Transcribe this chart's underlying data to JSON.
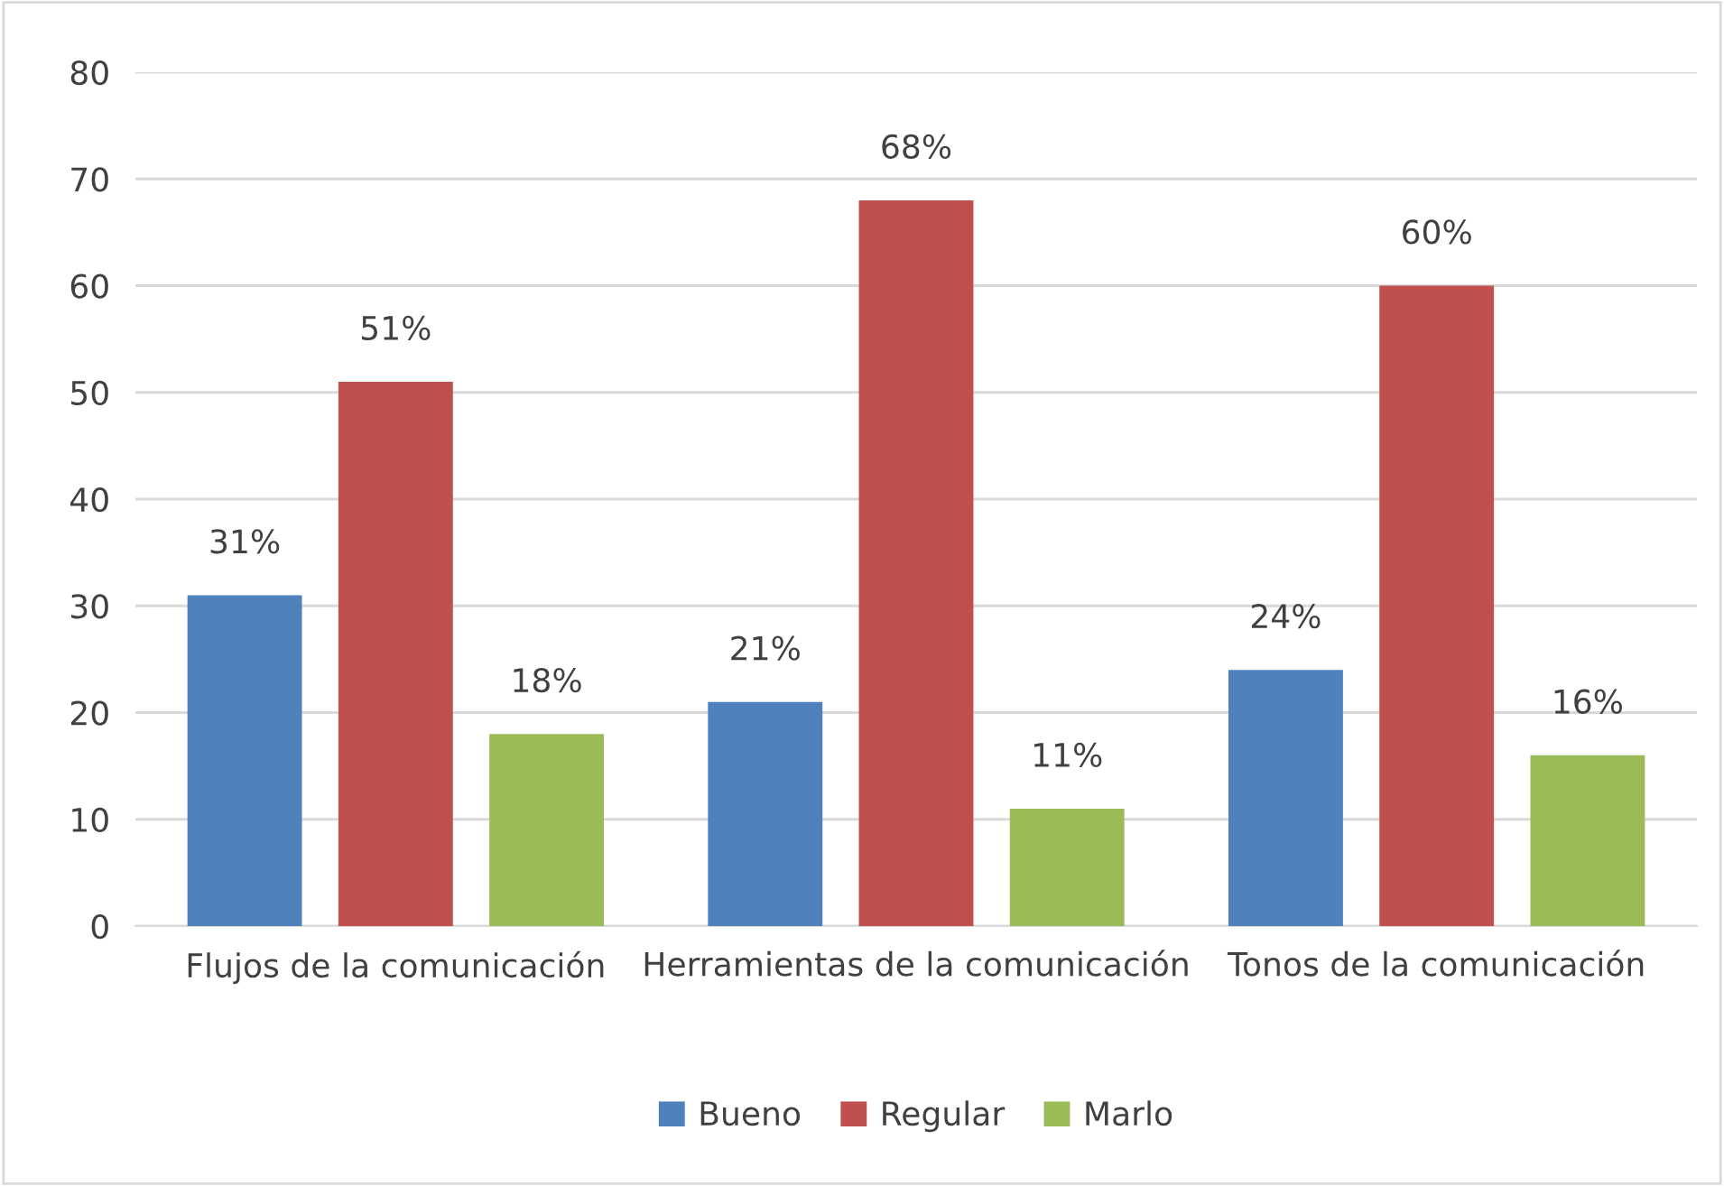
{
  "chart_data": {
    "type": "bar",
    "categories": [
      "Flujos de la comunicación",
      "Herramientas de la comunicación",
      "Tonos de la comunicación"
    ],
    "series": [
      {
        "name": "Bueno",
        "color": "#4f81bd",
        "values": [
          31,
          21,
          24
        ],
        "value_labels": [
          "31%",
          "21%",
          "24%"
        ]
      },
      {
        "name": "Regular",
        "color": "#c0504d",
        "values": [
          51,
          68,
          60
        ],
        "value_labels": [
          "51%",
          "68%",
          "60%"
        ]
      },
      {
        "name": "Marlo",
        "color": "#9bbb59",
        "values": [
          18,
          11,
          16
        ],
        "value_labels": [
          "18%",
          "11%",
          "16%"
        ]
      }
    ],
    "ylim": [
      0,
      80
    ],
    "yticks": [
      0,
      10,
      20,
      30,
      40,
      50,
      60,
      70,
      80
    ],
    "grid": "y",
    "legend": "bottom"
  }
}
